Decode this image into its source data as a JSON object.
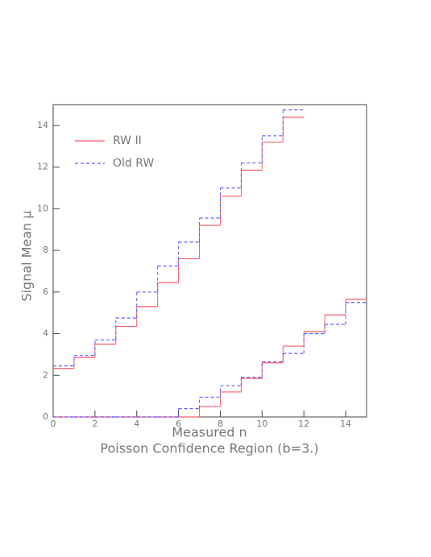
{
  "chart_data": {
    "type": "step",
    "subtitle": "Poisson Confidence Region (b=3.)",
    "x_label": "Measured n",
    "y_label": "Signal Mean μ",
    "x": [
      0,
      1,
      2,
      3,
      4,
      5,
      6,
      7,
      8,
      9,
      10,
      11,
      12,
      13,
      14
    ],
    "series": [
      {
        "name": "RW II",
        "color": "#ff5a6a",
        "dash": "solid",
        "values": [
          2.33,
          2.85,
          3.5,
          4.35,
          5.3,
          6.45,
          7.6,
          9.2,
          10.6,
          11.85,
          13.2,
          14.4,
          null,
          null,
          null
        ],
        "lower_values": [
          0,
          0,
          0,
          0,
          0,
          0,
          0,
          0.5,
          1.2,
          1.85,
          2.6,
          3.4,
          4.1,
          4.9,
          5.65
        ]
      },
      {
        "name": "Old RW",
        "color": "#5a5aff",
        "dash": "dashed",
        "values": [
          2.45,
          2.95,
          3.7,
          4.75,
          6.0,
          7.25,
          8.4,
          9.55,
          11.0,
          12.2,
          13.5,
          14.75,
          null,
          null,
          null
        ],
        "lower_values": [
          0,
          0,
          0,
          0,
          0,
          0,
          0.4,
          0.95,
          1.5,
          1.9,
          2.65,
          3.05,
          4.0,
          4.45,
          5.5
        ]
      }
    ],
    "xlim": [
      0,
      15
    ],
    "ylim": [
      0,
      15
    ],
    "xticks": [
      0,
      2,
      4,
      6,
      8,
      10,
      12,
      14
    ],
    "yticks": [
      0,
      2,
      4,
      6,
      8,
      10,
      12,
      14
    ],
    "legend": "upper-left"
  }
}
